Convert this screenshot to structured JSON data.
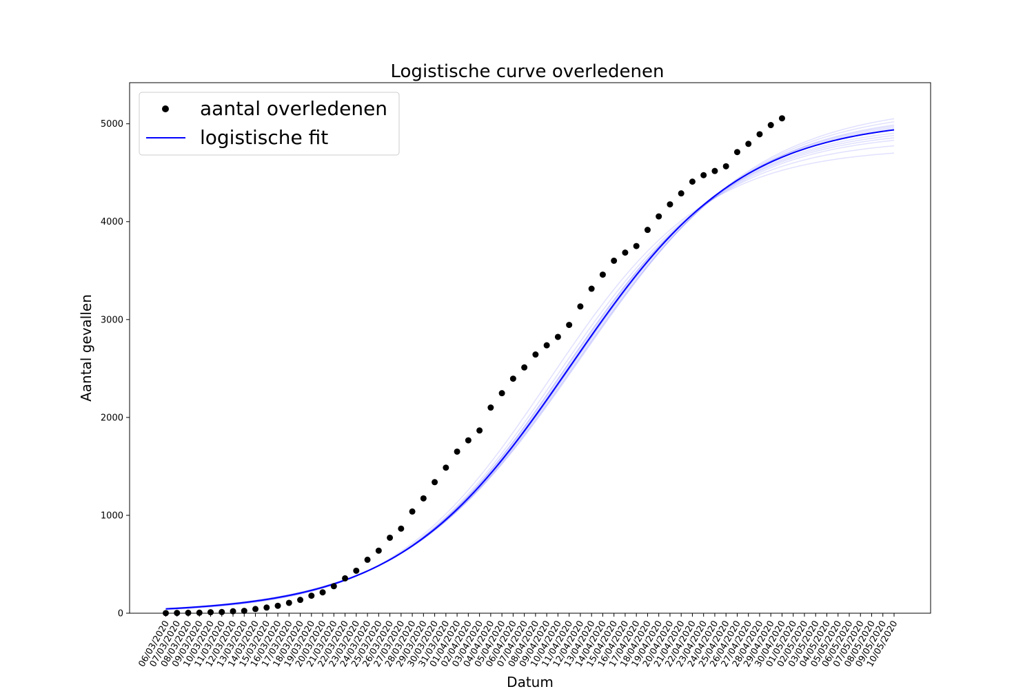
{
  "chart_data": {
    "type": "line",
    "title": "Logistische curve overledenen",
    "xlabel": "Datum",
    "ylabel": "Aantal gevallen",
    "ylim": [
      0,
      5420
    ],
    "yticks": [
      0,
      1000,
      2000,
      3000,
      4000,
      5000
    ],
    "grid": false,
    "legend_position": "top-left",
    "categories": [
      "06/03/2020",
      "07/03/2020",
      "08/03/2020",
      "09/03/2020",
      "10/03/2020",
      "11/03/2020",
      "12/03/2020",
      "13/03/2020",
      "14/03/2020",
      "15/03/2020",
      "16/03/2020",
      "17/03/2020",
      "18/03/2020",
      "19/03/2020",
      "20/03/2020",
      "21/03/2020",
      "22/03/2020",
      "23/03/2020",
      "24/03/2020",
      "25/03/2020",
      "26/03/2020",
      "27/03/2020",
      "28/03/2020",
      "29/03/2020",
      "30/03/2020",
      "31/03/2020",
      "01/04/2020",
      "02/04/2020",
      "03/04/2020",
      "04/04/2020",
      "05/04/2020",
      "06/04/2020",
      "07/04/2020",
      "08/04/2020",
      "09/04/2020",
      "10/04/2020",
      "11/04/2020",
      "12/04/2020",
      "13/04/2020",
      "14/04/2020",
      "15/04/2020",
      "16/04/2020",
      "17/04/2020",
      "18/04/2020",
      "19/04/2020",
      "20/04/2020",
      "21/04/2020",
      "22/04/2020",
      "23/04/2020",
      "24/04/2020",
      "25/04/2020",
      "26/04/2020",
      "27/04/2020",
      "28/04/2020",
      "29/04/2020",
      "30/04/2020",
      "01/05/2020",
      "02/05/2020",
      "03/05/2020",
      "04/05/2020",
      "05/05/2020",
      "06/05/2020",
      "07/05/2020",
      "08/05/2020",
      "09/05/2020",
      "10/05/2020"
    ],
    "series": [
      {
        "name": "aantal overledenen",
        "kind": "scatter",
        "color": "#000000",
        "values": [
          1,
          3,
          4,
          5,
          10,
          12,
          20,
          24,
          43,
          58,
          76,
          106,
          136,
          179,
          213,
          276,
          356,
          434,
          546,
          639,
          771,
          864,
          1039,
          1173,
          1339,
          1487,
          1651,
          1766,
          1867,
          2101,
          2248,
          2396,
          2511,
          2643,
          2737,
          2823,
          2945,
          3134,
          3315,
          3459,
          3601,
          3684,
          3751,
          3916,
          4054,
          4177,
          4289,
          4409,
          4475,
          4518,
          4566,
          4711,
          4795,
          4893,
          4987,
          5056
        ]
      },
      {
        "name": "logistische fit",
        "kind": "line",
        "color": "#0000ff",
        "model": {
          "K": 5050,
          "x0": 36.1,
          "k": 0.131
        }
      }
    ],
    "bootstrap_fits": {
      "color": "#0000ff",
      "opacity": 0.12,
      "params": [
        {
          "K": 4760,
          "x0": 34.2,
          "k": 0.142
        },
        {
          "K": 4850,
          "x0": 34.9,
          "k": 0.138
        },
        {
          "K": 4920,
          "x0": 35.4,
          "k": 0.135
        },
        {
          "K": 4980,
          "x0": 35.7,
          "k": 0.133
        },
        {
          "K": 5010,
          "x0": 35.9,
          "k": 0.132
        },
        {
          "K": 5080,
          "x0": 36.3,
          "k": 0.13
        },
        {
          "K": 5120,
          "x0": 36.6,
          "k": 0.128
        },
        {
          "K": 5160,
          "x0": 36.8,
          "k": 0.127
        },
        {
          "K": 5200,
          "x0": 37.0,
          "k": 0.126
        },
        {
          "K": 5100,
          "x0": 36.4,
          "k": 0.129
        },
        {
          "K": 4950,
          "x0": 35.5,
          "k": 0.134
        },
        {
          "K": 5060,
          "x0": 36.2,
          "k": 0.131
        }
      ]
    }
  }
}
